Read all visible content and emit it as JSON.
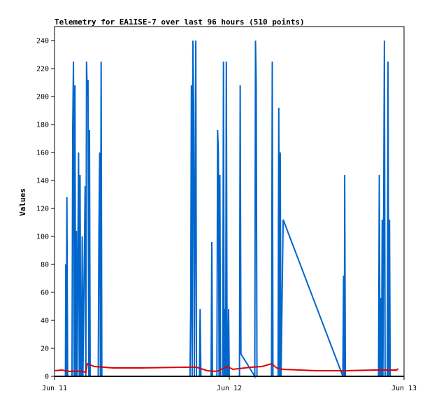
{
  "chart_data": {
    "type": "line",
    "title": "Telemetry for EA1ISE-7 over last 96 hours (510 points)",
    "xlabel": "",
    "ylabel": "Values",
    "xlim": [
      0,
      48
    ],
    "ylim": [
      0,
      250
    ],
    "grid": false,
    "x_ticks": [
      {
        "x": 0,
        "label": "Jun 11"
      },
      {
        "x": 24,
        "label": "Jun 12"
      },
      {
        "x": 48,
        "label": "Jun 13"
      }
    ],
    "y_ticks": [
      0,
      20,
      40,
      60,
      80,
      100,
      120,
      140,
      160,
      180,
      200,
      220,
      240
    ],
    "series": [
      {
        "color": "#0066cc",
        "points": [
          [
            1.5,
            0
          ],
          [
            1.55,
            80
          ],
          [
            1.6,
            0
          ],
          [
            1.7,
            128
          ],
          [
            1.8,
            0
          ],
          [
            2.4,
            0
          ],
          [
            2.5,
            176
          ],
          [
            2.6,
            225
          ],
          [
            2.7,
            0
          ],
          [
            2.8,
            208
          ],
          [
            2.9,
            0
          ],
          [
            3.0,
            104
          ],
          [
            3.1,
            0
          ],
          [
            3.3,
            160
          ],
          [
            3.4,
            0
          ],
          [
            3.5,
            144
          ],
          [
            3.6,
            0
          ],
          [
            3.7,
            0
          ],
          [
            3.8,
            100
          ],
          [
            3.9,
            0
          ],
          [
            4.2,
            136
          ],
          [
            4.3,
            0
          ],
          [
            4.4,
            225
          ],
          [
            4.5,
            200
          ],
          [
            4.6,
            212
          ],
          [
            4.7,
            0
          ],
          [
            4.8,
            176
          ],
          [
            4.9,
            0
          ],
          [
            6.0,
            0
          ],
          [
            6.1,
            100
          ],
          [
            6.2,
            160
          ],
          [
            6.3,
            0
          ],
          [
            6.4,
            225
          ],
          [
            6.5,
            0
          ],
          [
            18.6,
            0
          ],
          [
            18.7,
            48
          ],
          [
            18.8,
            208
          ],
          [
            18.9,
            0
          ],
          [
            19.0,
            240
          ],
          [
            19.1,
            192
          ],
          [
            19.2,
            0
          ],
          [
            19.4,
            240
          ],
          [
            19.5,
            0
          ],
          [
            19.9,
            0
          ],
          [
            20.0,
            48
          ],
          [
            20.1,
            0
          ],
          [
            21.5,
            0
          ],
          [
            21.6,
            96
          ],
          [
            21.7,
            0
          ],
          [
            22.3,
            0
          ],
          [
            22.4,
            176
          ],
          [
            22.5,
            160
          ],
          [
            22.6,
            0
          ],
          [
            22.7,
            144
          ],
          [
            22.8,
            0
          ],
          [
            23.1,
            0
          ],
          [
            23.2,
            225
          ],
          [
            23.3,
            0
          ],
          [
            23.4,
            48
          ],
          [
            23.5,
            0
          ],
          [
            23.6,
            225
          ],
          [
            23.7,
            0
          ],
          [
            23.8,
            0
          ],
          [
            23.9,
            48
          ],
          [
            24.0,
            0
          ],
          [
            25.4,
            0
          ],
          [
            25.5,
            208
          ],
          [
            25.6,
            16
          ],
          [
            27.5,
            0
          ],
          [
            27.6,
            240
          ],
          [
            27.7,
            208
          ],
          [
            27.8,
            0
          ],
          [
            29.8,
            0
          ],
          [
            29.9,
            225
          ],
          [
            30.0,
            0
          ],
          [
            30.7,
            0
          ],
          [
            30.8,
            192
          ],
          [
            30.9,
            0
          ],
          [
            31.0,
            160
          ],
          [
            31.1,
            0
          ],
          [
            31.4,
            112
          ],
          [
            39.6,
            0
          ],
          [
            39.7,
            72
          ],
          [
            39.8,
            0
          ],
          [
            39.85,
            144
          ],
          [
            39.95,
            0
          ],
          [
            44.5,
            0
          ],
          [
            44.6,
            144
          ],
          [
            44.7,
            0
          ],
          [
            44.8,
            56
          ],
          [
            44.9,
            0
          ],
          [
            45.0,
            112
          ],
          [
            45.1,
            0
          ],
          [
            45.3,
            240
          ],
          [
            45.4,
            0
          ],
          [
            45.7,
            0
          ],
          [
            45.8,
            225
          ],
          [
            45.9,
            0
          ],
          [
            46.0,
            112
          ],
          [
            46.1,
            0
          ]
        ]
      },
      {
        "color": "#dd0000",
        "points": [
          [
            0,
            4
          ],
          [
            1,
            4.5
          ],
          [
            2,
            3.5
          ],
          [
            3,
            3.8
          ],
          [
            4.3,
            3
          ],
          [
            4.5,
            9
          ],
          [
            5.5,
            7
          ],
          [
            8,
            6
          ],
          [
            12,
            6
          ],
          [
            18,
            6.5
          ],
          [
            19.5,
            6.5
          ],
          [
            21,
            4
          ],
          [
            22.3,
            3.5
          ],
          [
            23.7,
            7
          ],
          [
            24.5,
            5
          ],
          [
            27,
            6.5
          ],
          [
            28.5,
            7
          ],
          [
            29.8,
            9
          ],
          [
            30.5,
            6
          ],
          [
            31.4,
            5
          ],
          [
            36,
            4
          ],
          [
            40,
            4
          ],
          [
            44,
            4.5
          ],
          [
            46,
            4.5
          ],
          [
            47,
            4.5
          ],
          [
            47.2,
            5.5
          ]
        ]
      },
      {
        "color": "#000000",
        "points": [
          [
            0,
            0
          ],
          [
            48,
            0
          ]
        ]
      }
    ]
  }
}
